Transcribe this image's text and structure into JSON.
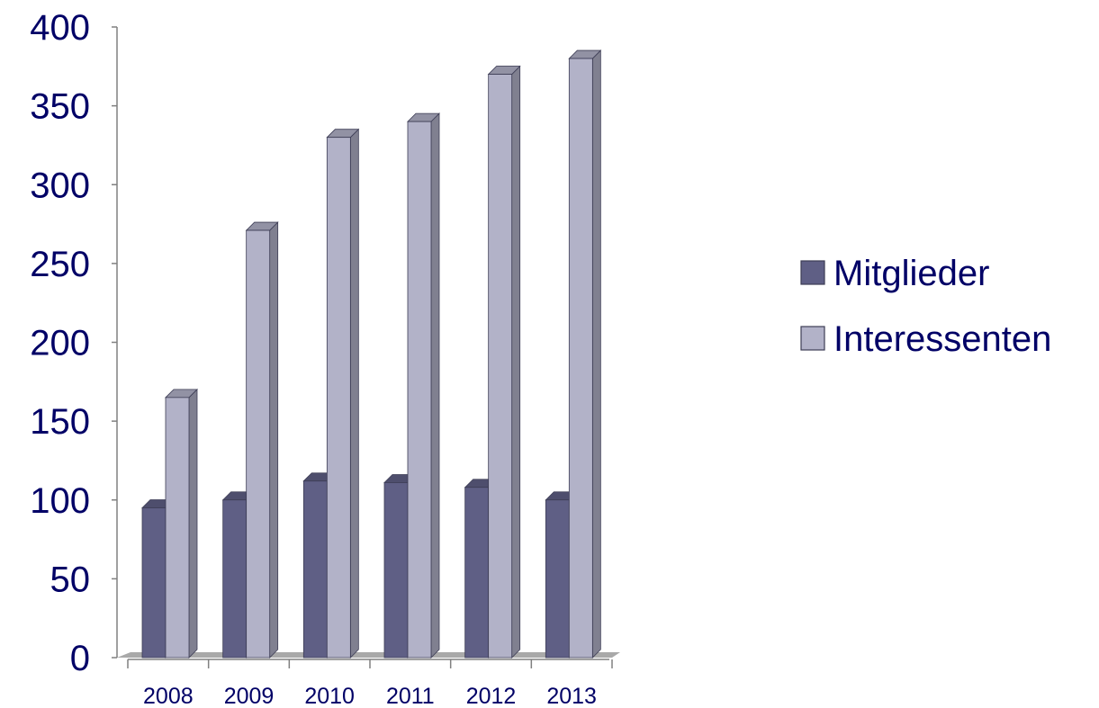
{
  "chart_data": {
    "type": "bar",
    "categories": [
      "2008",
      "2009",
      "2010",
      "2011",
      "2012",
      "2013"
    ],
    "series": [
      {
        "name": "Mitglieder",
        "values": [
          95,
          100,
          112,
          111,
          108,
          100
        ],
        "color": "#5f5f85"
      },
      {
        "name": "Interessenten",
        "values": [
          165,
          271,
          330,
          340,
          370,
          380
        ],
        "color": "#b2b2c8"
      }
    ],
    "ylim": [
      0,
      400
    ],
    "yticks": [
      "0",
      "50",
      "100",
      "150",
      "200",
      "250",
      "300",
      "350",
      "400"
    ],
    "legend_position": "right",
    "grid": false,
    "style": "3d-columns"
  }
}
